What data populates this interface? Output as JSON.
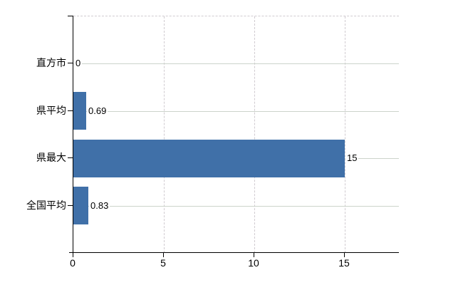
{
  "chart_data": {
    "type": "bar",
    "orientation": "horizontal",
    "title": "",
    "xlabel": "",
    "ylabel": "",
    "categories": [
      "直方市",
      "県平均",
      "県最大",
      "全国平均"
    ],
    "values": [
      0,
      0.69,
      15,
      0.83
    ],
    "value_labels": [
      "0",
      "0.69",
      "15",
      "0.83"
    ],
    "xlim": [
      0,
      18
    ],
    "x_ticks": [
      0,
      5,
      10,
      15
    ],
    "x_tick_labels": [
      "0",
      "5",
      "10",
      "15"
    ],
    "grid": true,
    "legend": false,
    "colors": {
      "bar": "#4070a8",
      "h_gridline": "#ccd4cb",
      "v_gridline": "#d0cbd0",
      "axis": "#000000",
      "text": "#000000",
      "background": "#ffffff"
    }
  }
}
